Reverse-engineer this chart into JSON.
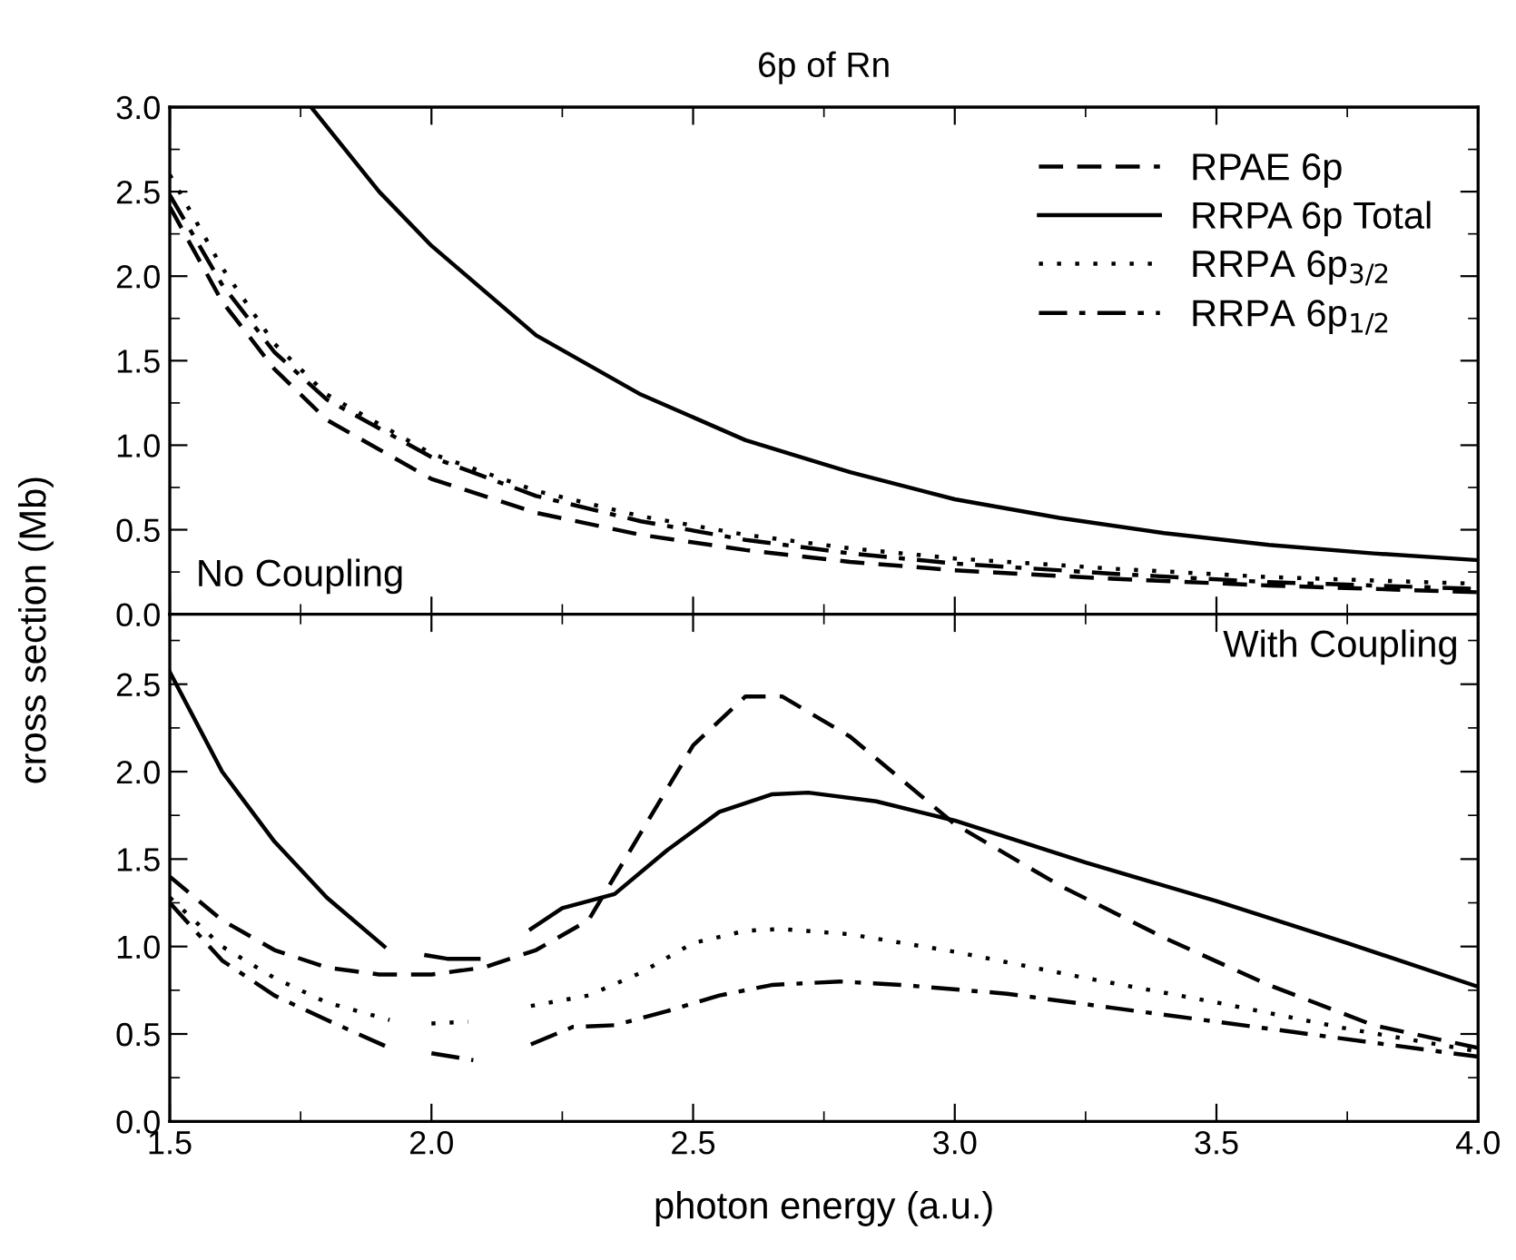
{
  "chart_data": [
    {
      "type": "line",
      "title": "6p of Rn",
      "ylabel": "cross section (Mb)",
      "annotations": [
        "No Coupling"
      ],
      "legend": "top right",
      "tick_labels": "y",
      "grid": false,
      "xlim": [
        1.5,
        4.0
      ],
      "xticks": [
        {
          "value": 1.5,
          "label": null
        },
        {
          "value": 2.0,
          "label": null
        },
        {
          "value": 2.5,
          "label": null
        },
        {
          "value": 3.0,
          "label": null
        },
        {
          "value": 3.5,
          "label": null
        },
        {
          "value": 4.0,
          "label": null
        }
      ],
      "ylim": [
        0,
        3.0
      ],
      "yticks": [
        {
          "value": 0,
          "label": "0.0"
        },
        {
          "value": 0.5,
          "label": "0.5"
        },
        {
          "value": 1.0,
          "label": "1.0"
        },
        {
          "value": 1.5,
          "label": "1.5"
        },
        {
          "value": 2.0,
          "label": "2.0"
        },
        {
          "value": 2.5,
          "label": "2.5"
        },
        {
          "value": 3.0,
          "label": "3.0"
        }
      ],
      "series": [
        {
          "name": "RPAE 6p",
          "color": "#000000",
          "line_style": "dashed",
          "x": [
            1.5,
            1.6,
            1.7,
            1.8,
            2.0,
            2.2,
            2.4,
            2.6,
            2.8,
            3.0,
            3.3,
            3.6,
            4.0
          ],
          "values": [
            2.41,
            1.85,
            1.45,
            1.15,
            0.8,
            0.6,
            0.47,
            0.38,
            0.31,
            0.26,
            0.21,
            0.17,
            0.13
          ]
        },
        {
          "name": "RRPA 6p Total",
          "color": "#000000",
          "line_style": "solid",
          "x": [
            1.77,
            1.9,
            2.0,
            2.2,
            2.4,
            2.6,
            2.8,
            3.0,
            3.2,
            3.4,
            3.6,
            3.8,
            4.0
          ],
          "values": [
            3.0,
            2.5,
            2.18,
            1.65,
            1.3,
            1.03,
            0.84,
            0.68,
            0.57,
            0.48,
            0.41,
            0.36,
            0.32
          ]
        },
        {
          "name": "RRPA 6p$_{3/2}$",
          "color": "#000000",
          "line_style": "dotted",
          "x": [
            1.5,
            1.6,
            1.7,
            1.8,
            2.0,
            2.2,
            2.4,
            2.6,
            2.8,
            3.0,
            3.3,
            3.6,
            4.0
          ],
          "values": [
            2.6,
            2.05,
            1.6,
            1.3,
            0.95,
            0.73,
            0.58,
            0.47,
            0.39,
            0.33,
            0.27,
            0.22,
            0.18
          ]
        },
        {
          "name": "RRPA 6p$_{1/2}$",
          "color": "#000000",
          "line_style": "dashdot",
          "x": [
            1.5,
            1.6,
            1.7,
            1.8,
            2.0,
            2.2,
            2.4,
            2.6,
            2.8,
            3.0,
            3.3,
            3.6,
            4.0
          ],
          "values": [
            2.48,
            1.95,
            1.55,
            1.27,
            0.93,
            0.7,
            0.55,
            0.44,
            0.36,
            0.3,
            0.24,
            0.19,
            0.15
          ]
        }
      ]
    },
    {
      "type": "line",
      "xlabel": "photon energy (a.u.)",
      "annotations": [
        "With Coupling"
      ],
      "grid": false,
      "xlim": [
        1.5,
        4.0
      ],
      "xticks": [
        {
          "value": 1.5,
          "label": "1.5"
        },
        {
          "value": 2.0,
          "label": "2.0"
        },
        {
          "value": 2.5,
          "label": "2.5"
        },
        {
          "value": 3.0,
          "label": "3.0"
        },
        {
          "value": 3.5,
          "label": "3.5"
        },
        {
          "value": 4.0,
          "label": "4.0"
        }
      ],
      "ylim": [
        0,
        2.9
      ],
      "yticks": [
        {
          "value": 0,
          "label": "0.0"
        },
        {
          "value": 0.5,
          "label": "0.5"
        },
        {
          "value": 1.0,
          "label": "1.0"
        },
        {
          "value": 1.5,
          "label": "1.5"
        },
        {
          "value": 2.0,
          "label": "2.0"
        },
        {
          "value": 2.5,
          "label": "2.5"
        }
      ],
      "series": [
        {
          "color": "#000000",
          "line_style": "dashed",
          "x": [
            1.5,
            1.6,
            1.7,
            1.8,
            1.9,
            2.0,
            2.1,
            2.2,
            2.3,
            2.4,
            2.5,
            2.6,
            2.67,
            2.8,
            2.9,
            3.0,
            3.2,
            3.4,
            3.6,
            3.8,
            4.0
          ],
          "values": [
            1.4,
            1.15,
            0.98,
            0.88,
            0.84,
            0.84,
            0.88,
            0.98,
            1.15,
            1.65,
            2.15,
            2.43,
            2.43,
            2.2,
            1.95,
            1.7,
            1.35,
            1.05,
            0.78,
            0.55,
            0.42
          ]
        },
        {
          "color": "#000000",
          "line_style": "solid",
          "x": [
            1.5,
            1.6,
            1.7,
            1.8,
            1.91,
            1.95,
            1.99,
            2.03,
            2.09,
            2.14,
            2.19,
            2.25,
            2.35,
            2.45,
            2.55,
            2.65,
            2.72,
            2.85,
            3.0,
            3.25,
            3.5,
            3.75,
            4.0
          ],
          "values": [
            2.57,
            2.0,
            1.6,
            1.28,
            1.0,
            null,
            0.95,
            0.93,
            0.93,
            null,
            1.1,
            1.22,
            1.3,
            1.55,
            1.77,
            1.87,
            1.88,
            1.83,
            1.72,
            1.48,
            1.26,
            1.02,
            0.77
          ]
        },
        {
          "color": "#000000",
          "line_style": "dotted",
          "x": [
            1.5,
            1.6,
            1.7,
            1.8,
            1.92,
            1.96,
            2.0,
            2.07,
            2.13,
            2.19,
            2.3,
            2.4,
            2.5,
            2.6,
            2.67,
            2.8,
            3.0,
            3.25,
            3.5,
            3.75,
            4.0
          ],
          "values": [
            1.28,
            1.0,
            0.82,
            0.68,
            0.58,
            null,
            0.56,
            0.57,
            null,
            0.66,
            0.72,
            0.85,
            1.02,
            1.09,
            1.1,
            1.07,
            0.97,
            0.82,
            0.68,
            0.53,
            0.4
          ]
        },
        {
          "color": "#000000",
          "line_style": "dashdot",
          "x": [
            1.5,
            1.6,
            1.7,
            1.8,
            1.92,
            1.96,
            2.0,
            2.08,
            2.13,
            2.19,
            2.27,
            2.35,
            2.45,
            2.55,
            2.65,
            2.78,
            2.9,
            3.1,
            3.3,
            3.6,
            4.0
          ],
          "values": [
            1.25,
            0.92,
            0.72,
            0.58,
            0.42,
            null,
            0.39,
            0.35,
            null,
            0.44,
            0.54,
            0.55,
            0.63,
            0.72,
            0.78,
            0.8,
            0.78,
            0.73,
            0.65,
            0.53,
            0.37
          ]
        }
      ]
    }
  ]
}
